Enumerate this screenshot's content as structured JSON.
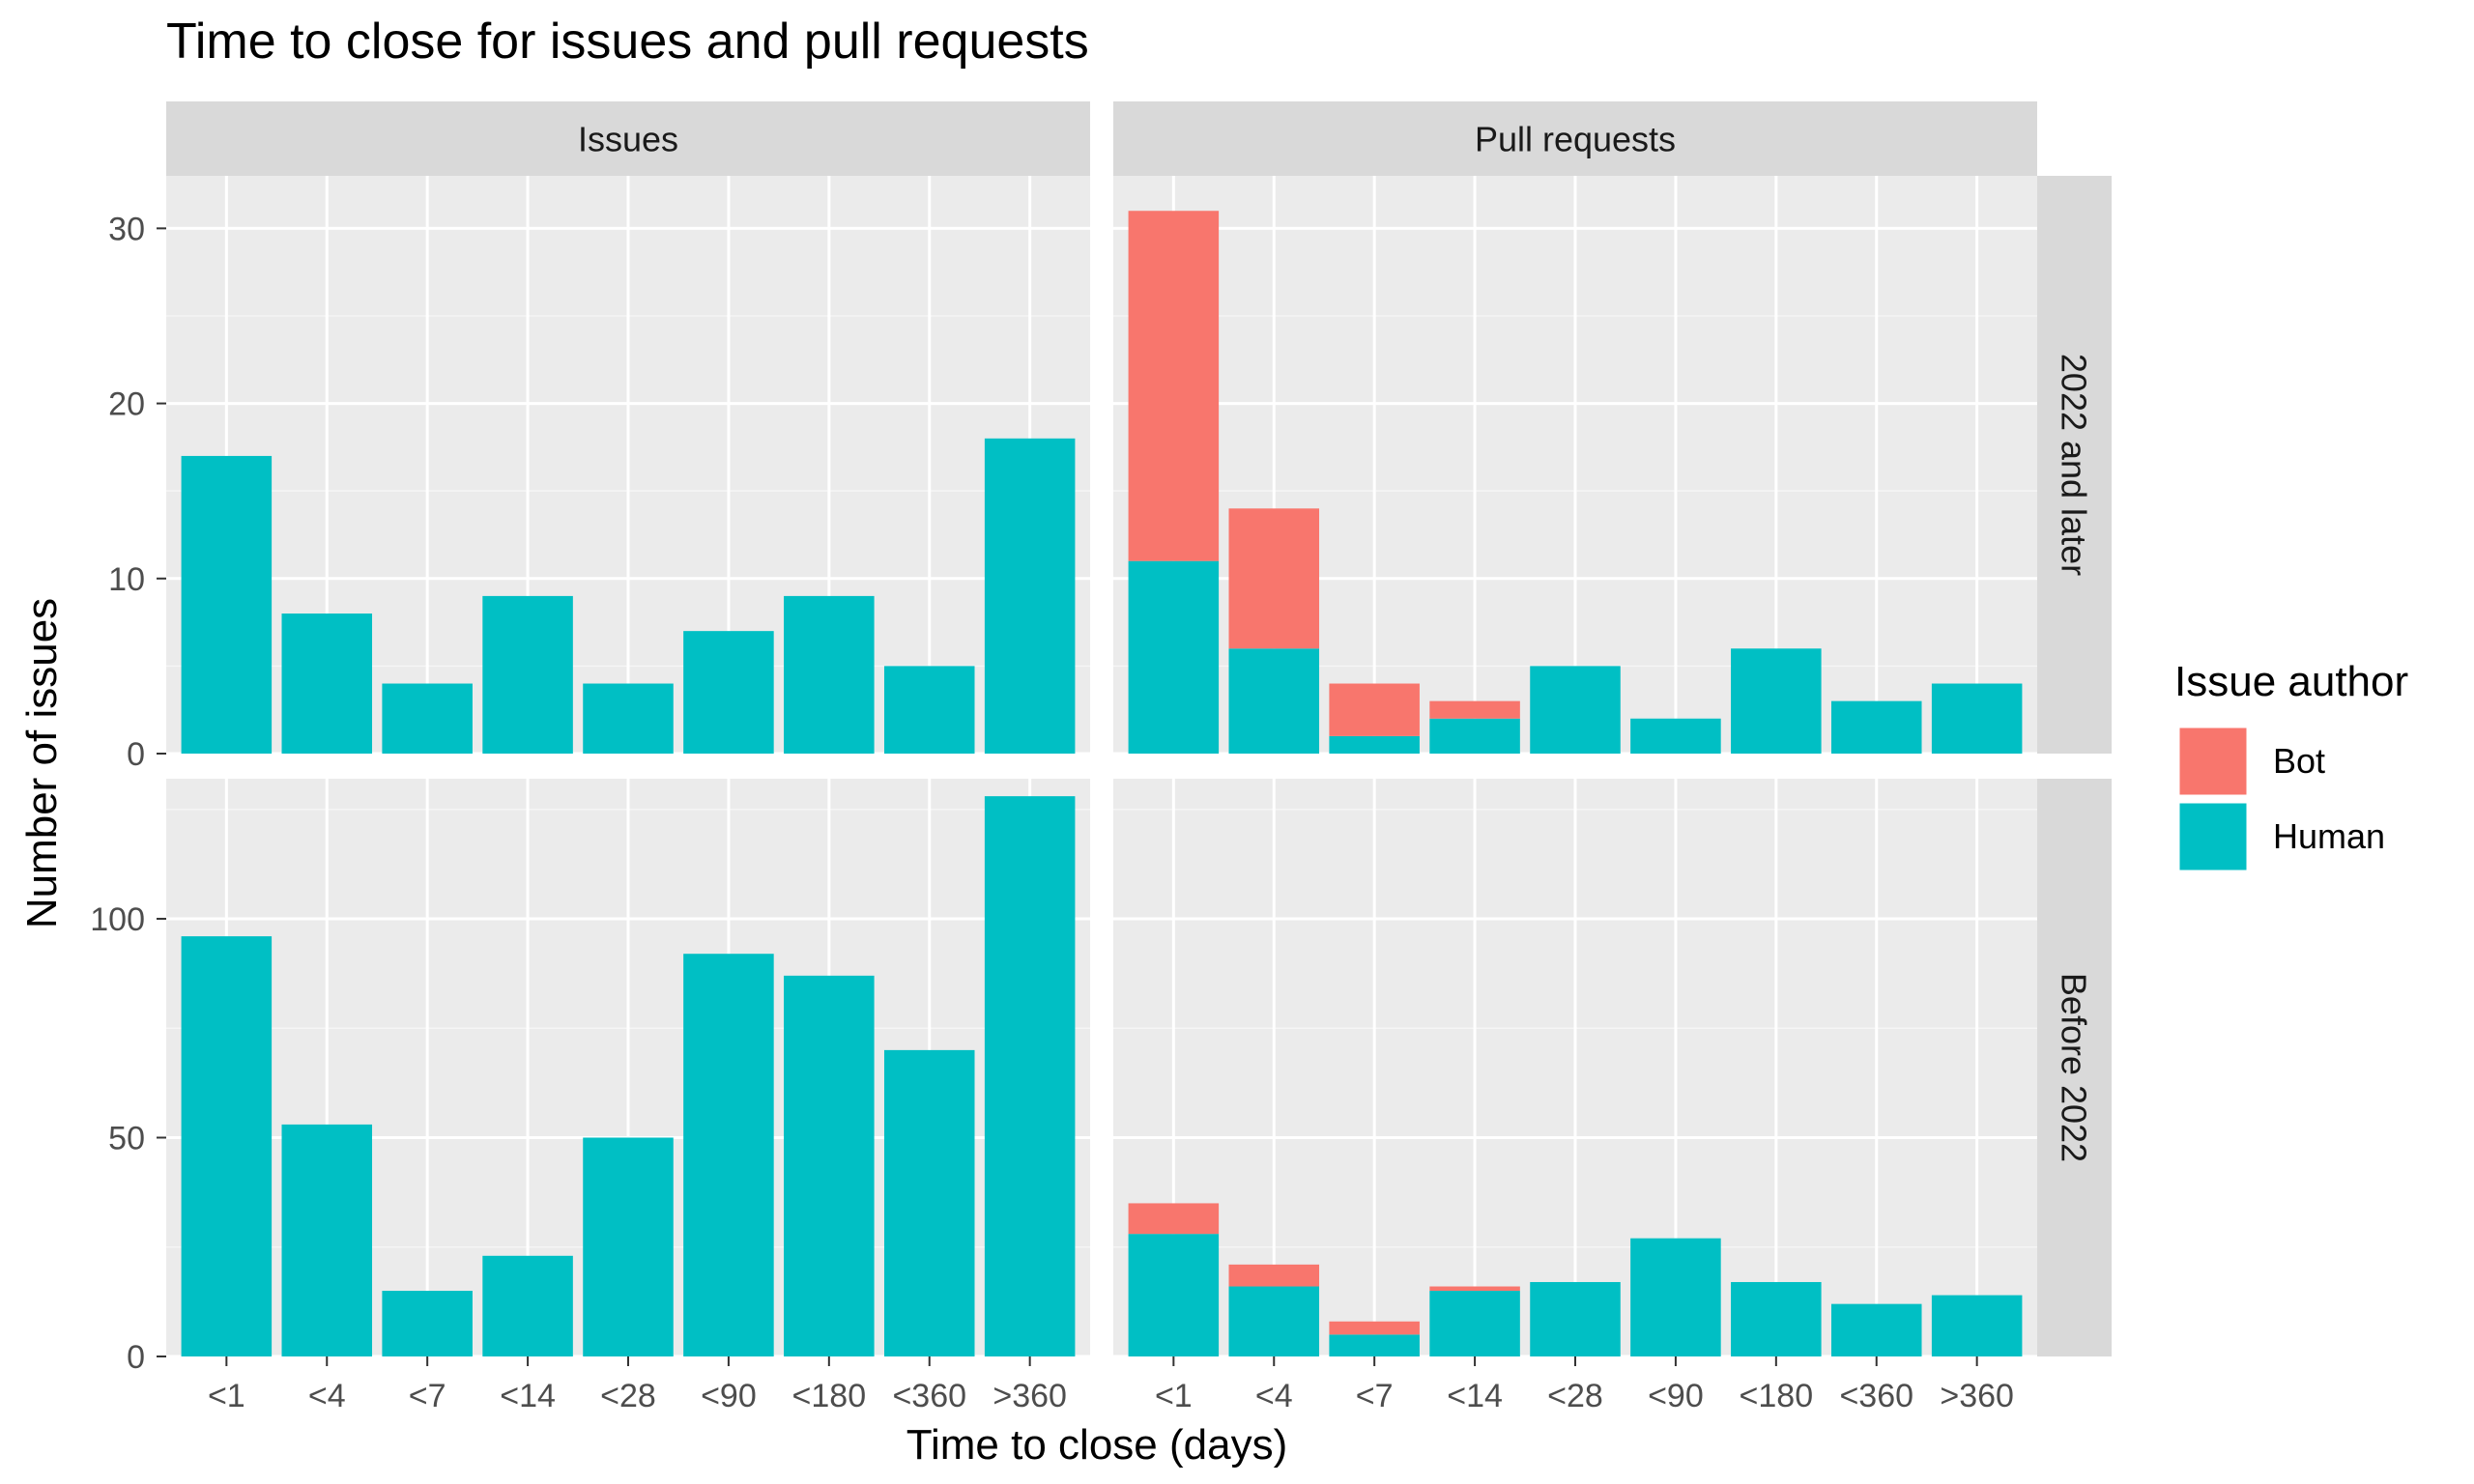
{
  "chart_data": {
    "type": "bar",
    "stacked": true,
    "title": "Time to close for issues and pull requests",
    "xlabel": "Time to close (days)",
    "ylabel": "Number of issues",
    "categories": [
      "<1",
      "<4",
      "<7",
      "<14",
      "<28",
      "<90",
      "<180",
      "<360",
      ">360"
    ],
    "column_facets": [
      "Issues",
      "Pull requests"
    ],
    "row_facets": [
      "2022 and later",
      "Before 2022"
    ],
    "legend": {
      "title": "Issue author",
      "position": "right",
      "entries": [
        {
          "name": "Bot",
          "color": "#F8766D"
        },
        {
          "name": "Human",
          "color": "#00BFC4"
        }
      ]
    },
    "rows": [
      {
        "ylim": [
          0,
          33
        ],
        "yticks": [
          0,
          10,
          20,
          30
        ],
        "panels": [
          {
            "facet": "Issues",
            "series": [
              {
                "name": "Human",
                "values": [
                  17,
                  8,
                  4,
                  9,
                  4,
                  7,
                  9,
                  5,
                  18
                ]
              },
              {
                "name": "Bot",
                "values": [
                  0,
                  0,
                  0,
                  0,
                  0,
                  0,
                  0,
                  0,
                  0
                ]
              }
            ]
          },
          {
            "facet": "Pull requests",
            "series": [
              {
                "name": "Human",
                "values": [
                  11,
                  6,
                  1,
                  2,
                  5,
                  2,
                  6,
                  3,
                  4
                ]
              },
              {
                "name": "Bot",
                "values": [
                  20,
                  8,
                  3,
                  1,
                  0,
                  0,
                  0,
                  0,
                  0
                ]
              }
            ]
          }
        ]
      },
      {
        "ylim": [
          0,
          132
        ],
        "yticks": [
          0,
          50,
          100
        ],
        "panels": [
          {
            "facet": "Issues",
            "series": [
              {
                "name": "Human",
                "values": [
                  96,
                  53,
                  15,
                  23,
                  50,
                  92,
                  87,
                  70,
                  128
                ]
              },
              {
                "name": "Bot",
                "values": [
                  0,
                  0,
                  0,
                  0,
                  0,
                  0,
                  0,
                  0,
                  0
                ]
              }
            ]
          },
          {
            "facet": "Pull requests",
            "series": [
              {
                "name": "Human",
                "values": [
                  28,
                  16,
                  5,
                  15,
                  17,
                  27,
                  17,
                  12,
                  14
                ]
              },
              {
                "name": "Bot",
                "values": [
                  7,
                  5,
                  3,
                  1,
                  0,
                  0,
                  0,
                  0,
                  0
                ]
              }
            ]
          }
        ]
      }
    ],
    "grid": true,
    "panel_background": "#EBEBEB",
    "strip_background": "#D9D9D9"
  }
}
